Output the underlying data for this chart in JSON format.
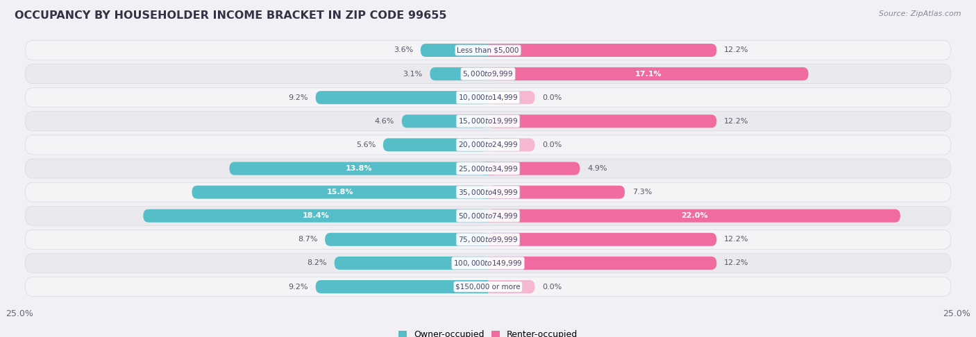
{
  "title": "OCCUPANCY BY HOUSEHOLDER INCOME BRACKET IN ZIP CODE 99655",
  "source": "Source: ZipAtlas.com",
  "categories": [
    "Less than $5,000",
    "$5,000 to $9,999",
    "$10,000 to $14,999",
    "$15,000 to $19,999",
    "$20,000 to $24,999",
    "$25,000 to $34,999",
    "$35,000 to $49,999",
    "$50,000 to $74,999",
    "$75,000 to $99,999",
    "$100,000 to $149,999",
    "$150,000 or more"
  ],
  "owner_values": [
    3.6,
    3.1,
    9.2,
    4.6,
    5.6,
    13.8,
    15.8,
    18.4,
    8.7,
    8.2,
    9.2
  ],
  "renter_values": [
    12.2,
    17.1,
    0.0,
    12.2,
    0.0,
    4.9,
    7.3,
    22.0,
    12.2,
    12.2,
    0.0
  ],
  "owner_color": "#55bec8",
  "owner_color_light": "#a8dde2",
  "renter_color": "#f06ca0",
  "renter_color_light": "#f5b8d0",
  "row_bg_odd": "#f4f4f6",
  "row_bg_even": "#eaeaee",
  "center_label_bg": "#ffffff",
  "xlim": 25.0,
  "bar_min_stub": 2.5,
  "title_fontsize": 11.5,
  "bar_label_fontsize": 8,
  "cat_label_fontsize": 7.5,
  "legend_fontsize": 9,
  "source_fontsize": 8
}
